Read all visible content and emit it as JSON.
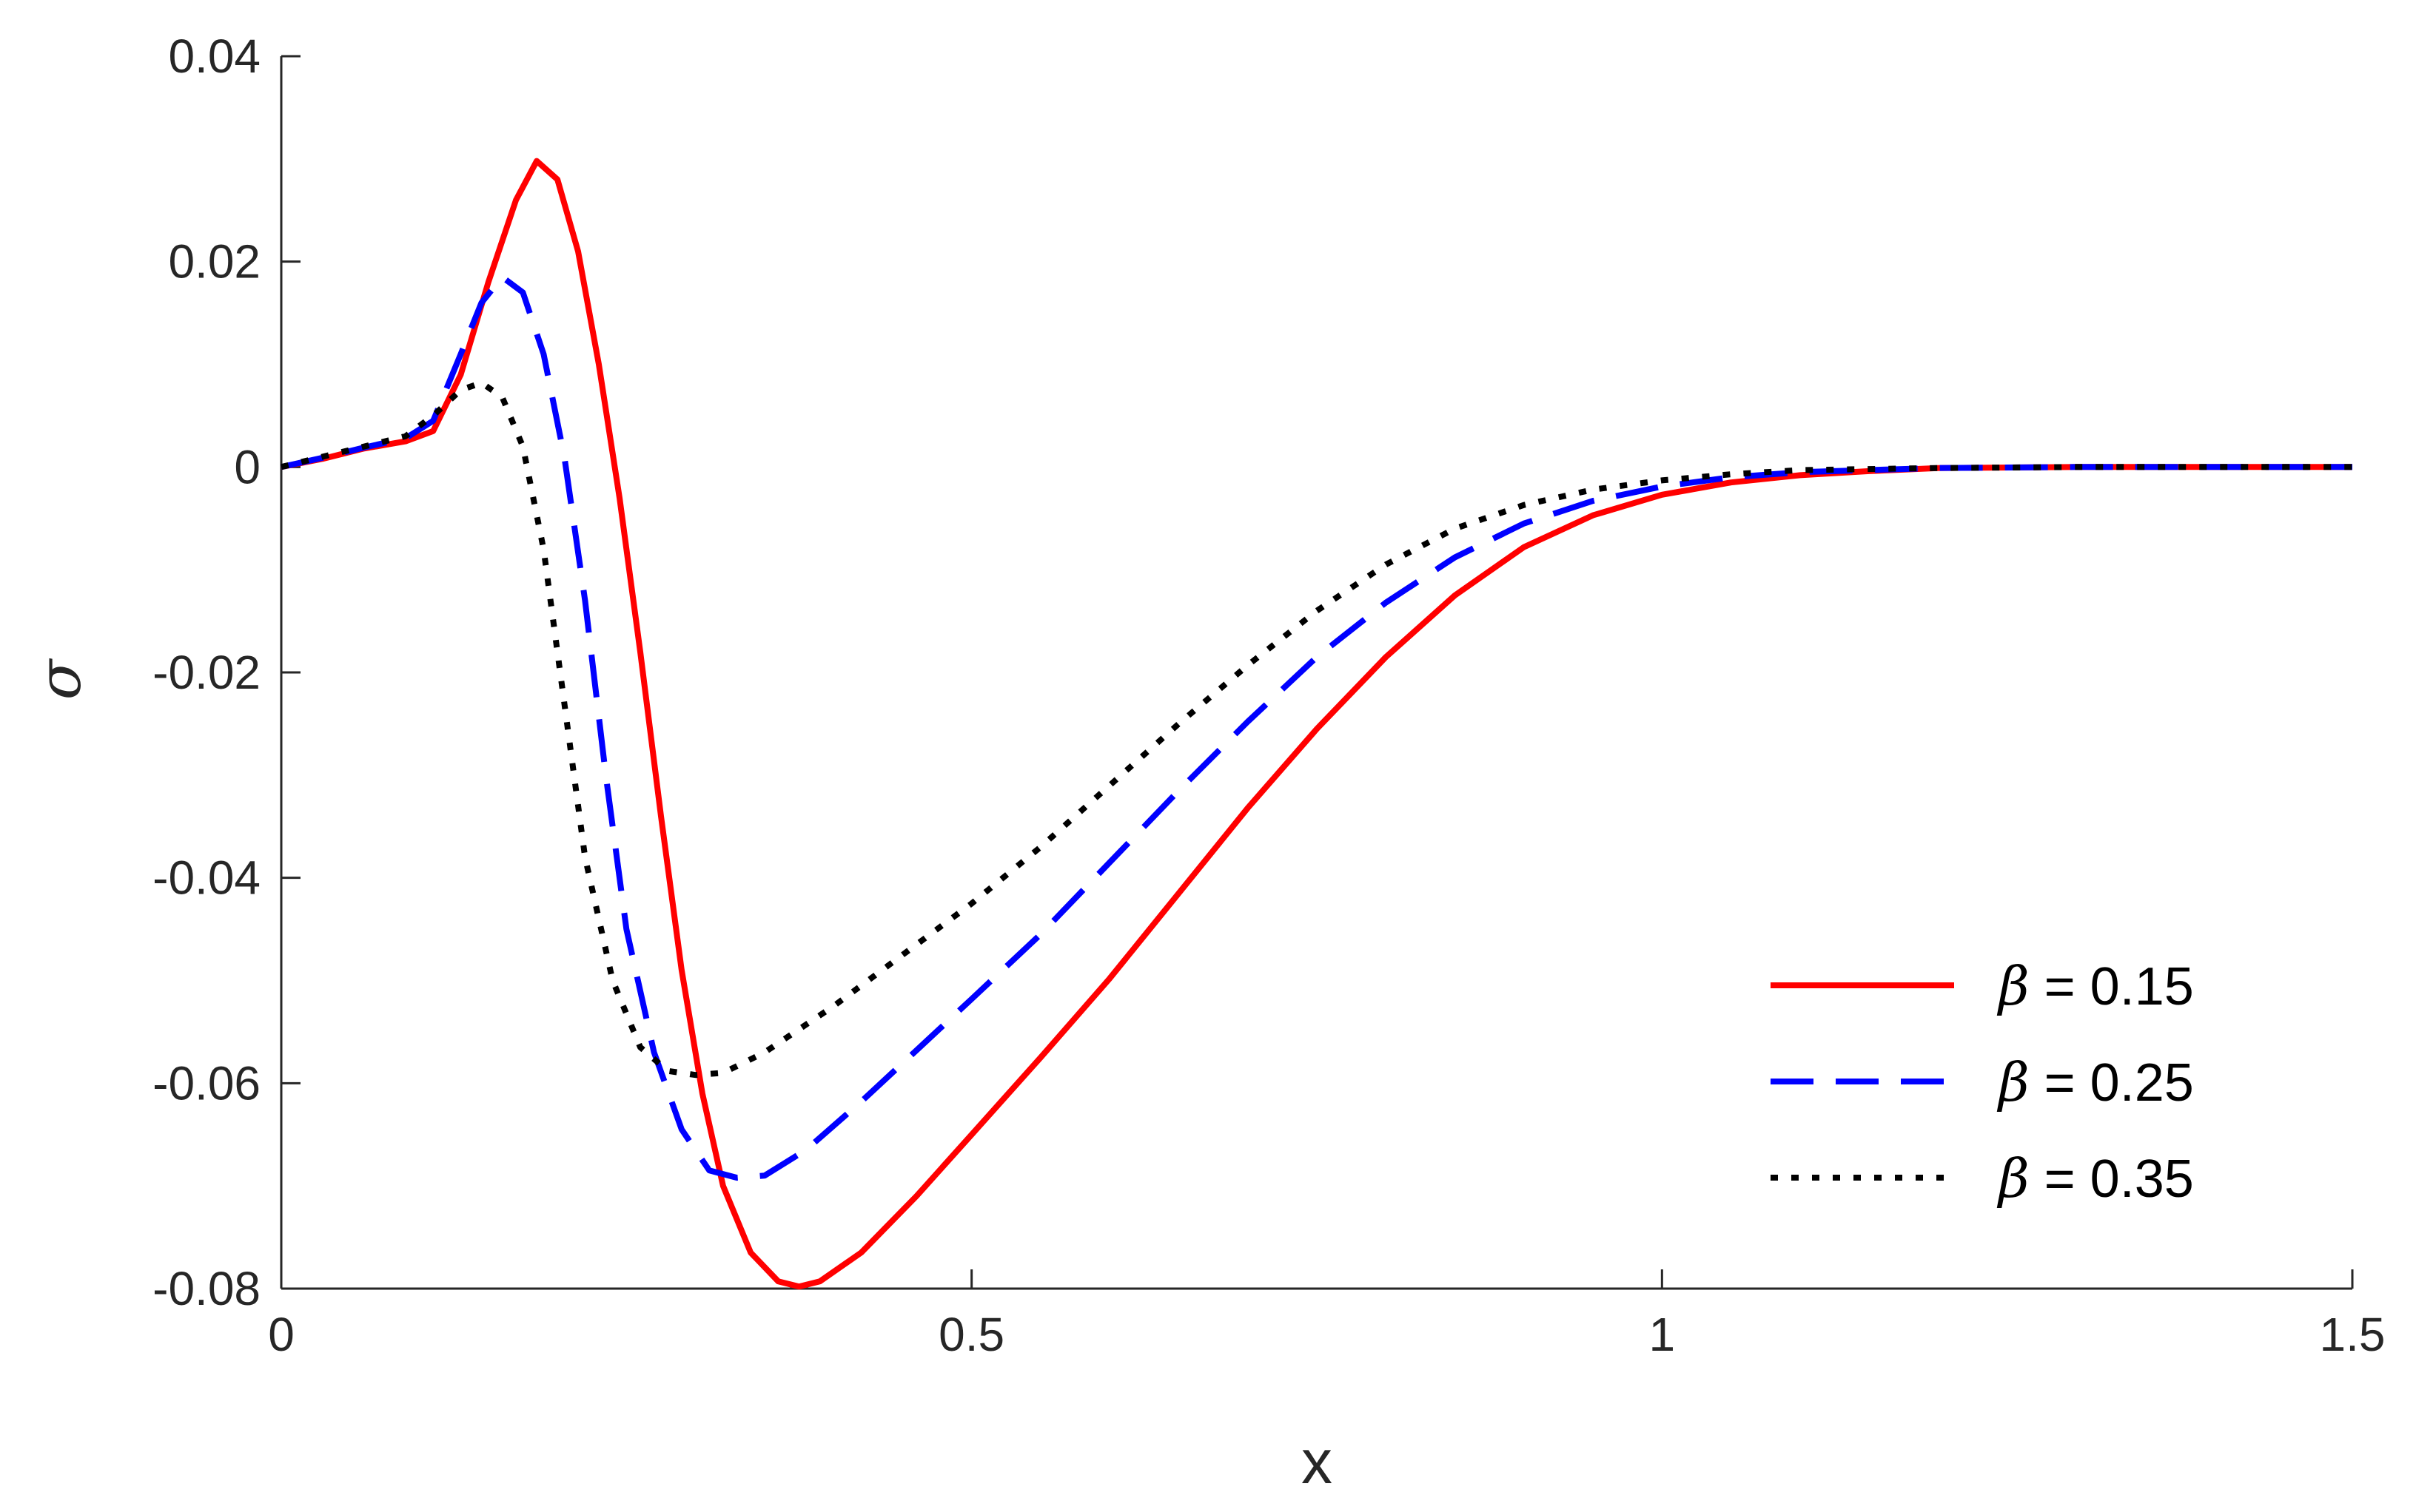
{
  "chart_data": {
    "type": "line",
    "xlabel": "x",
    "ylabel": "σ",
    "xlim": [
      0,
      1.5
    ],
    "ylim": [
      -0.08,
      0.04
    ],
    "xticks": [
      0,
      0.5,
      1,
      1.5
    ],
    "xtick_labels": [
      "0",
      "0.5",
      "1",
      "1.5"
    ],
    "yticks": [
      0.04,
      0.02,
      0,
      -0.02,
      -0.04,
      -0.06,
      -0.08
    ],
    "ytick_labels": [
      "0.04",
      "0.02",
      "0",
      "-0.02",
      "-0.04",
      "-0.06",
      "-0.08"
    ],
    "grid": false,
    "legend_position": "bottom-right",
    "series": [
      {
        "name": "β = 0.15",
        "symbol": "β",
        "value_text": " = 0.15",
        "color": "#ff0000",
        "style": "solid",
        "points": [
          [
            0,
            0
          ],
          [
            0.03,
            0.0008
          ],
          [
            0.06,
            0.0018
          ],
          [
            0.09,
            0.0025
          ],
          [
            0.11,
            0.0035
          ],
          [
            0.13,
            0.009
          ],
          [
            0.15,
            0.018
          ],
          [
            0.17,
            0.026
          ],
          [
            0.185,
            0.0298
          ],
          [
            0.2,
            0.028
          ],
          [
            0.215,
            0.021
          ],
          [
            0.23,
            0.01
          ],
          [
            0.245,
            -0.003
          ],
          [
            0.26,
            -0.018
          ],
          [
            0.275,
            -0.034
          ],
          [
            0.29,
            -0.049
          ],
          [
            0.305,
            -0.061
          ],
          [
            0.32,
            -0.07
          ],
          [
            0.34,
            -0.0765
          ],
          [
            0.36,
            -0.0793
          ],
          [
            0.375,
            -0.0798
          ],
          [
            0.39,
            -0.0793
          ],
          [
            0.42,
            -0.0765
          ],
          [
            0.46,
            -0.071
          ],
          [
            0.5,
            -0.065
          ],
          [
            0.55,
            -0.0575
          ],
          [
            0.6,
            -0.0498
          ],
          [
            0.65,
            -0.0415
          ],
          [
            0.7,
            -0.0332
          ],
          [
            0.75,
            -0.0255
          ],
          [
            0.8,
            -0.0185
          ],
          [
            0.85,
            -0.0125
          ],
          [
            0.9,
            -0.0078
          ],
          [
            0.95,
            -0.0047
          ],
          [
            1.0,
            -0.0027
          ],
          [
            1.05,
            -0.0015
          ],
          [
            1.1,
            -0.0008
          ],
          [
            1.15,
            -0.0004
          ],
          [
            1.2,
            -0.0001
          ],
          [
            1.3,
            0
          ],
          [
            1.4,
            0
          ],
          [
            1.5,
            0
          ]
        ]
      },
      {
        "name": "β = 0.25",
        "symbol": "β",
        "value_text": " = 0.25",
        "color": "#0000ff",
        "style": "dashed",
        "points": [
          [
            0,
            0
          ],
          [
            0.03,
            0.0009
          ],
          [
            0.06,
            0.0019
          ],
          [
            0.09,
            0.0028
          ],
          [
            0.11,
            0.0045
          ],
          [
            0.13,
            0.011
          ],
          [
            0.145,
            0.016
          ],
          [
            0.16,
            0.0185
          ],
          [
            0.175,
            0.017
          ],
          [
            0.19,
            0.011
          ],
          [
            0.205,
            0.001
          ],
          [
            0.22,
            -0.013
          ],
          [
            0.235,
            -0.03
          ],
          [
            0.25,
            -0.045
          ],
          [
            0.27,
            -0.057
          ],
          [
            0.29,
            -0.0645
          ],
          [
            0.31,
            -0.0685
          ],
          [
            0.33,
            -0.0692
          ],
          [
            0.35,
            -0.069
          ],
          [
            0.38,
            -0.0665
          ],
          [
            0.42,
            -0.0618
          ],
          [
            0.46,
            -0.0568
          ],
          [
            0.5,
            -0.0518
          ],
          [
            0.55,
            -0.0455
          ],
          [
            0.6,
            -0.0385
          ],
          [
            0.65,
            -0.0315
          ],
          [
            0.7,
            -0.0248
          ],
          [
            0.75,
            -0.0185
          ],
          [
            0.8,
            -0.0132
          ],
          [
            0.85,
            -0.0088
          ],
          [
            0.9,
            -0.0055
          ],
          [
            0.95,
            -0.0033
          ],
          [
            1.0,
            -0.0019
          ],
          [
            1.05,
            -0.001
          ],
          [
            1.1,
            -0.0005
          ],
          [
            1.2,
            -0.0001
          ],
          [
            1.3,
            0
          ],
          [
            1.4,
            0
          ],
          [
            1.5,
            0
          ]
        ]
      },
      {
        "name": "β = 0.35",
        "symbol": "β",
        "value_text": " = 0.35",
        "color": "#000000",
        "style": "dotted",
        "points": [
          [
            0,
            0
          ],
          [
            0.03,
            0.001
          ],
          [
            0.06,
            0.002
          ],
          [
            0.09,
            0.003
          ],
          [
            0.11,
            0.005
          ],
          [
            0.13,
            0.0075
          ],
          [
            0.145,
            0.0082
          ],
          [
            0.16,
            0.0068
          ],
          [
            0.175,
            0.002
          ],
          [
            0.19,
            -0.008
          ],
          [
            0.205,
            -0.023
          ],
          [
            0.22,
            -0.038
          ],
          [
            0.24,
            -0.05
          ],
          [
            0.26,
            -0.0565
          ],
          [
            0.28,
            -0.0588
          ],
          [
            0.3,
            -0.0592
          ],
          [
            0.32,
            -0.059
          ],
          [
            0.35,
            -0.057
          ],
          [
            0.4,
            -0.0525
          ],
          [
            0.45,
            -0.0475
          ],
          [
            0.5,
            -0.0425
          ],
          [
            0.55,
            -0.037
          ],
          [
            0.6,
            -0.031
          ],
          [
            0.65,
            -0.025
          ],
          [
            0.7,
            -0.0193
          ],
          [
            0.75,
            -0.014
          ],
          [
            0.8,
            -0.0095
          ],
          [
            0.85,
            -0.006
          ],
          [
            0.9,
            -0.0037
          ],
          [
            0.95,
            -0.0022
          ],
          [
            1.0,
            -0.0013
          ],
          [
            1.05,
            -0.0007
          ],
          [
            1.1,
            -0.0003
          ],
          [
            1.2,
            -0.0001
          ],
          [
            1.3,
            0
          ],
          [
            1.4,
            0
          ],
          [
            1.5,
            0
          ]
        ]
      }
    ]
  }
}
